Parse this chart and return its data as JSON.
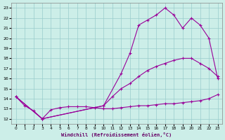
{
  "background_color": "#cceee8",
  "line_color": "#990099",
  "grid_color": "#99cccc",
  "xlabel": "Windchill (Refroidissement éolien,°C)",
  "ylim": [
    11.5,
    23.5
  ],
  "xlim": [
    -0.5,
    23.5
  ],
  "yticks": [
    12,
    13,
    14,
    15,
    16,
    17,
    18,
    19,
    20,
    21,
    22,
    23
  ],
  "xticks": [
    0,
    1,
    2,
    3,
    4,
    5,
    6,
    7,
    8,
    9,
    10,
    11,
    12,
    13,
    14,
    15,
    16,
    17,
    18,
    19,
    20,
    21,
    22,
    23
  ],
  "series": [
    {
      "x": [
        0,
        1,
        2,
        3,
        4,
        5,
        6,
        7,
        8,
        9,
        10,
        11,
        12,
        13,
        14,
        15,
        16,
        17,
        18,
        19,
        20,
        21,
        22,
        23
      ],
      "y": [
        14.2,
        13.3,
        12.8,
        12.0,
        12.9,
        13.1,
        13.2,
        13.2,
        13.2,
        13.1,
        13.0,
        13.0,
        13.1,
        13.2,
        13.3,
        13.3,
        13.4,
        13.5,
        13.5,
        13.6,
        13.7,
        13.8,
        14.0,
        14.4
      ]
    },
    {
      "x": [
        0,
        3,
        10,
        11,
        12,
        13,
        14,
        15,
        16,
        17,
        18,
        19,
        20,
        21,
        22,
        23
      ],
      "y": [
        14.2,
        12.0,
        13.3,
        14.2,
        15.0,
        15.5,
        16.2,
        16.8,
        17.2,
        17.5,
        17.8,
        18.0,
        18.0,
        17.5,
        17.0,
        16.2
      ]
    },
    {
      "x": [
        0,
        3,
        10,
        12,
        13,
        14,
        15,
        16,
        17,
        18,
        19,
        20,
        21,
        22,
        23
      ],
      "y": [
        14.2,
        12.0,
        13.3,
        16.5,
        18.5,
        21.3,
        21.8,
        22.3,
        23.0,
        22.3,
        21.0,
        22.0,
        21.3,
        20.0,
        16.0
      ]
    }
  ]
}
